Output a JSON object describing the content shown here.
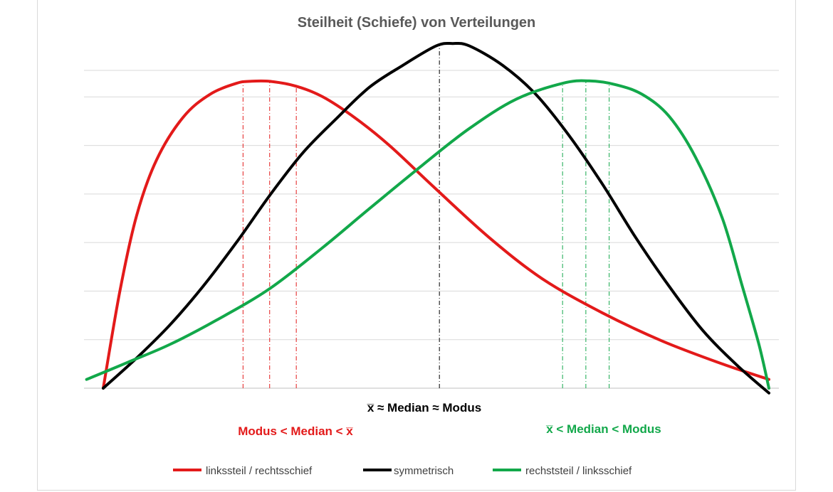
{
  "chart_data": {
    "type": "line",
    "title": "Steilheit (Schiefe) von Verteilungen",
    "xlabel": "",
    "ylabel": "",
    "grid": true,
    "legend_position": "bottom",
    "xlim": [
      -0.25,
      10.25
    ],
    "ylim": [
      0,
      7
    ],
    "series": [
      {
        "name": "linkssteil / rechtsschief",
        "color": "#e31a1a",
        "points": [
          [
            0,
            0
          ],
          [
            0.25,
            2.0
          ],
          [
            0.5,
            3.55
          ],
          [
            0.8,
            4.7
          ],
          [
            1.2,
            5.58
          ],
          [
            1.6,
            6.05
          ],
          [
            2.0,
            6.28
          ],
          [
            2.2,
            6.32
          ],
          [
            2.5,
            6.32
          ],
          [
            2.9,
            6.22
          ],
          [
            3.3,
            6.0
          ],
          [
            3.8,
            5.55
          ],
          [
            4.3,
            5.0
          ],
          [
            5.0,
            4.1
          ],
          [
            5.8,
            3.1
          ],
          [
            6.6,
            2.25
          ],
          [
            7.5,
            1.55
          ],
          [
            8.4,
            0.97
          ],
          [
            9.3,
            0.5
          ],
          [
            10.0,
            0.18
          ]
        ]
      },
      {
        "name": "symmetrisch",
        "color": "#000000",
        "points": [
          [
            0,
            0
          ],
          [
            0.5,
            0.62
          ],
          [
            1.0,
            1.3
          ],
          [
            1.5,
            2.1
          ],
          [
            2.0,
            3.0
          ],
          [
            2.5,
            3.97
          ],
          [
            3.0,
            4.85
          ],
          [
            3.5,
            5.55
          ],
          [
            4.0,
            6.2
          ],
          [
            4.5,
            6.65
          ],
          [
            5.0,
            7.05
          ],
          [
            5.25,
            7.1
          ],
          [
            5.5,
            7.05
          ],
          [
            6.0,
            6.65
          ],
          [
            6.5,
            6.05
          ],
          [
            7.0,
            5.2
          ],
          [
            7.5,
            4.2
          ],
          [
            8.0,
            3.1
          ],
          [
            8.5,
            2.1
          ],
          [
            9.0,
            1.2
          ],
          [
            9.5,
            0.5
          ],
          [
            10.0,
            -0.1
          ]
        ]
      },
      {
        "name": "rechststeil / linksschief",
        "color": "#12a84a",
        "points": [
          [
            -0.25,
            0.18
          ],
          [
            0.4,
            0.55
          ],
          [
            1.0,
            0.9
          ],
          [
            1.7,
            1.4
          ],
          [
            2.5,
            2.05
          ],
          [
            3.3,
            2.9
          ],
          [
            4.0,
            3.7
          ],
          [
            4.8,
            4.6
          ],
          [
            5.5,
            5.35
          ],
          [
            6.2,
            5.95
          ],
          [
            6.9,
            6.28
          ],
          [
            7.3,
            6.33
          ],
          [
            7.7,
            6.25
          ],
          [
            8.1,
            6.05
          ],
          [
            8.5,
            5.6
          ],
          [
            8.9,
            4.75
          ],
          [
            9.3,
            3.5
          ],
          [
            9.6,
            2.1
          ],
          [
            9.85,
            0.9
          ],
          [
            10.0,
            0.0
          ]
        ]
      }
    ],
    "reference_lines": [
      {
        "color": "#e31a1a",
        "x": [
          2.1,
          2.5,
          2.9
        ]
      },
      {
        "color": "#000000",
        "x": [
          5.05
        ]
      },
      {
        "color": "#12a84a",
        "x": [
          6.9,
          7.25,
          7.6
        ]
      }
    ],
    "annotations": [
      {
        "text": "x̅ ≈ Median ≈ Modus",
        "color": "#000000"
      },
      {
        "text": "Modus < Median < x̅",
        "color": "#e31a1a"
      },
      {
        "text": "x̅ < Median < Modus",
        "color": "#12a84a"
      }
    ]
  }
}
